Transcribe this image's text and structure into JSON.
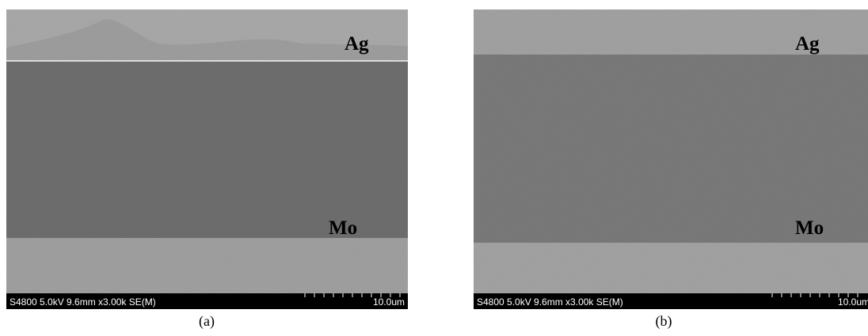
{
  "panels": [
    {
      "labels": {
        "top": "Ag",
        "bottom": "Mo"
      },
      "info": "S4800 5.0kV 9.6mm x3.00k SE(M)",
      "scale": "10.0um",
      "caption": "(a)"
    },
    {
      "labels": {
        "top": "Ag",
        "bottom": "Mo"
      },
      "info": "S4800 5.0kV 9.6mm x3.00k SE(M)",
      "scale": "10.0um",
      "caption": "(b)"
    }
  ]
}
